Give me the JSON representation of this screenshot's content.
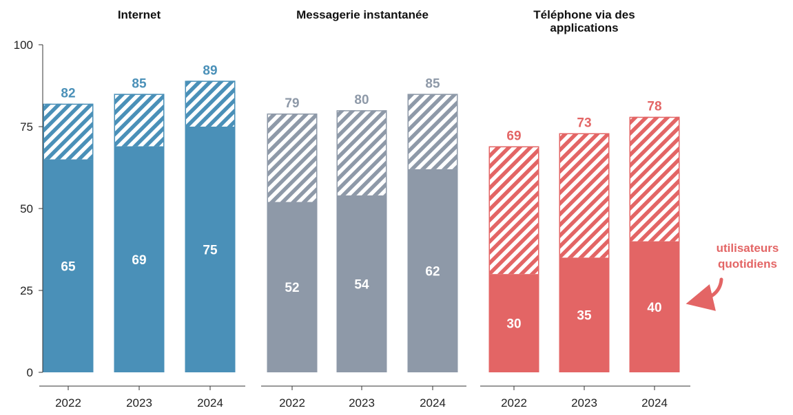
{
  "chart_data": {
    "type": "bar",
    "subtype": "grouped-panels, stacked (daily users solid, remainder hatched)",
    "y_axis": {
      "ylim": [
        0,
        100
      ],
      "ticks": [
        0,
        25,
        50,
        75,
        100
      ],
      "grid": false
    },
    "categories": [
      "2022",
      "2023",
      "2024"
    ],
    "panels": [
      {
        "title": "Internet",
        "color": "#4a90b8",
        "total": [
          82,
          85,
          89
        ],
        "daily": [
          65,
          69,
          75
        ]
      },
      {
        "title": "Messagerie instantanée",
        "color": "#8e99a8",
        "total": [
          79,
          80,
          85
        ],
        "daily": [
          52,
          54,
          62
        ]
      },
      {
        "title": "Téléphone via des applications",
        "title_lines": [
          "Téléphone via des",
          "applications"
        ],
        "color": "#e36565",
        "total": [
          69,
          73,
          78
        ],
        "daily": [
          30,
          35,
          40
        ]
      }
    ],
    "annotation": {
      "lines": [
        "utilisateurs",
        "quotidiens"
      ],
      "color": "#e36565"
    },
    "legend": "none"
  }
}
